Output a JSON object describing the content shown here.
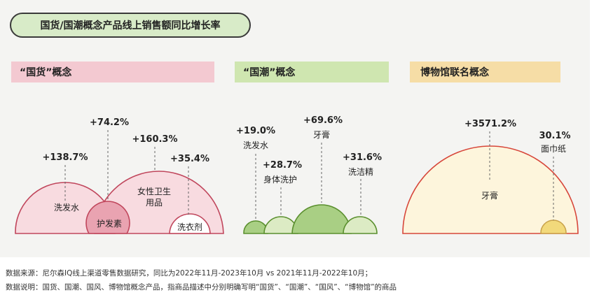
{
  "title": "国货/国潮概念产品线上销售额同比增长率",
  "colors": {
    "panel_bg": "#f4f4f2",
    "title_bg": "#d8ebc8",
    "title_border": "#3a3a3a",
    "pink_band": "#f3c9d1",
    "green_band": "#cfe6b0",
    "yellow_band": "#f6dda6",
    "pink_fill": "#f8dbe0",
    "pink_fill_dark": "#e9a3b1",
    "pink_stroke": "#c0465c",
    "green_fill": "#dcebc4",
    "green_fill_dark": "#a9cf84",
    "green_stroke": "#5a8f2e",
    "cream_fill": "#fdf5dc",
    "cream_stroke": "#d7463a",
    "yellow_fill": "#f2d97b",
    "dash": "#666666"
  },
  "chart_data": [
    {
      "type": "bubble",
      "title": "“国货”概念",
      "unit": "同比增长率",
      "items": [
        {
          "label": "洗发水",
          "value": "+138.7%"
        },
        {
          "label": "护发素",
          "value": "+74.2%"
        },
        {
          "label": "女性卫生用品",
          "value": "+160.3%"
        },
        {
          "label": "洗衣剂",
          "value": "+35.4%"
        }
      ]
    },
    {
      "type": "bubble",
      "title": "“国潮”概念",
      "unit": "同比增长率",
      "items": [
        {
          "label": "洗发水",
          "value": "+19.0%"
        },
        {
          "label": "身体洗护",
          "value": "+28.7%"
        },
        {
          "label": "牙膏",
          "value": "+69.6%"
        },
        {
          "label": "洗洁精",
          "value": "+31.6%"
        }
      ]
    },
    {
      "type": "bubble",
      "title": "博物馆联名概念",
      "unit": "同比增长率",
      "items": [
        {
          "label": "牙膏",
          "value": "+3571.2%"
        },
        {
          "label": "面巾纸",
          "value": "30.1%"
        }
      ]
    }
  ],
  "footnotes": {
    "source": "数据来源：尼尔森IQ线上渠道零售数据研究，同比为2022年11月-2023年10月 vs 2021年11月-2022年10月；",
    "note": "数据说明：国货、国潮、国风、博物馆概念产品，指商品描述中分别明确写明“国货”、“国潮”、“国风”、“博物馆”的商品"
  }
}
